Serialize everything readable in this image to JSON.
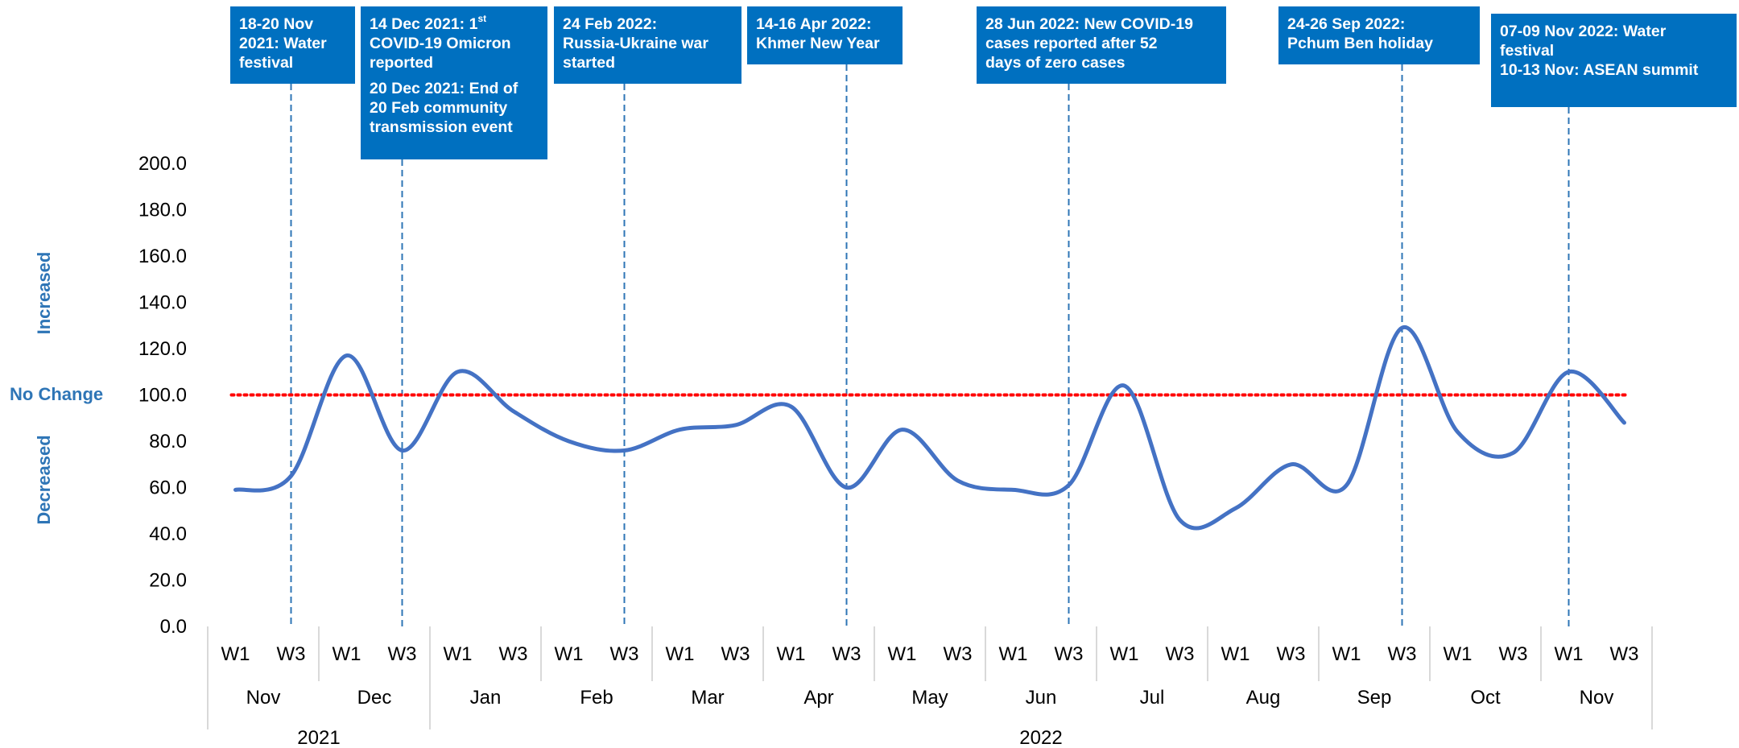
{
  "side_labels": {
    "increased": "Increased",
    "no_change": "No Change",
    "decreased": "Decreased"
  },
  "colors": {
    "series": "#4472c4",
    "baseline": "#ff0000",
    "annotation_bg": "#0070c0",
    "event_line": "#2e75b6",
    "side_label": "#2e75b6",
    "axis_text": "#000000"
  },
  "annotations": [
    {
      "title": "18-20 Nov\n2021: Water\nfestival",
      "week_index": 1
    },
    {
      "title_pre": "14 Dec 2021: 1",
      "title_sup": "st",
      "title_post": "\nCOVID-19 Omicron\nreported",
      "sub": "20 Dec 2021: End of\n20 Feb community\ntransmission event",
      "week_index": 3
    },
    {
      "title": "24 Feb 2022:\nRussia-Ukraine war\nstarted",
      "week_index": 7
    },
    {
      "title": "14-16 Apr 2022:\nKhmer New Year",
      "week_index": 11
    },
    {
      "title": "28 Jun 2022: New COVID-19\ncases reported after 52\ndays of zero cases",
      "week_index": 15
    },
    {
      "title": "24-26 Sep 2022:\nPchum Ben holiday",
      "week_index": 21
    },
    {
      "title": "07-09 Nov 2022: Water\nfestival\n10-13 Nov: ASEAN summit",
      "week_index": 24
    }
  ],
  "chart_data": {
    "type": "line",
    "title": "",
    "xlabel": "",
    "ylabel": "",
    "ylim": [
      0,
      200
    ],
    "yticks": [
      "0.0",
      "20.0",
      "40.0",
      "60.0",
      "80.0",
      "100.0",
      "120.0",
      "140.0",
      "160.0",
      "180.0",
      "200.0"
    ],
    "grid": false,
    "legend": "none",
    "baseline": {
      "value": 100,
      "label": "No Change"
    },
    "x": [
      "Nov W1",
      "Nov W3",
      "Dec W1",
      "Dec W3",
      "Jan W1",
      "Jan W3",
      "Feb W1",
      "Feb W3",
      "Mar W1",
      "Mar W3",
      "Apr W1",
      "Apr W3",
      "May W1",
      "May W3",
      "Jun W1",
      "Jun W3",
      "Jul W1",
      "Jul W3",
      "Aug W1",
      "Aug W3",
      "Sep W1",
      "Sep W3",
      "Oct W1",
      "Oct W3",
      "Nov W1",
      "Nov W3"
    ],
    "week_labels": [
      "W1",
      "W3"
    ],
    "months": [
      "Nov",
      "Dec",
      "Jan",
      "Feb",
      "Mar",
      "Apr",
      "May",
      "Jun",
      "Jul",
      "Aug",
      "Sep",
      "Oct",
      "Nov"
    ],
    "years": [
      {
        "label": "2021",
        "months": 2
      },
      {
        "label": "2022",
        "months": 11
      }
    ],
    "series": [
      {
        "values": [
          59,
          65,
          117,
          76,
          110,
          93,
          80,
          76,
          85,
          87,
          95,
          60,
          85,
          63,
          59,
          61,
          104,
          46,
          51,
          70,
          61,
          129,
          84,
          75,
          110,
          88
        ]
      }
    ]
  }
}
